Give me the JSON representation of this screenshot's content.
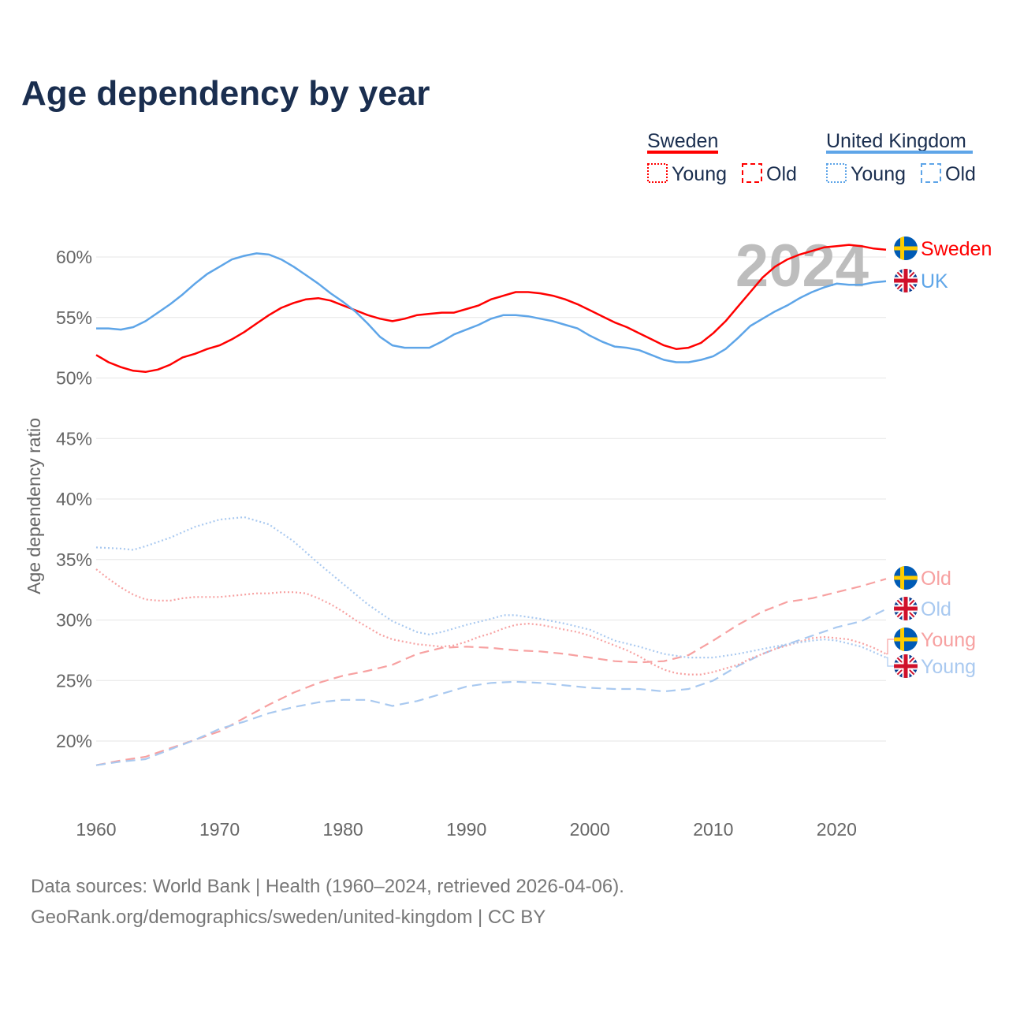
{
  "colors": {
    "title": "#1a2e4f",
    "sweden": "#ff0000",
    "uk": "#5ea5e8",
    "sweden_light": "#f7a1a1",
    "uk_light": "#a9c9f0",
    "grid": "#e6e6e6",
    "axis_text": "#666666",
    "watermark": "#bdbdbd"
  },
  "legend": {
    "sweden": {
      "label": "Sweden",
      "young": "Young",
      "old": "Old"
    },
    "uk": {
      "label": "United Kingdom",
      "young": "Young",
      "old": "Old"
    }
  },
  "footer": {
    "line1": "Data sources: World Bank | Health (1960–2024, retrieved 2026-04-06).",
    "line2": "GeoRank.org/demographics/sweden/united-kingdom | CC BY"
  },
  "chart_data": {
    "type": "line",
    "title": "Age dependency by year",
    "watermark": "2024",
    "xlabel": "",
    "ylabel": "Age dependency ratio",
    "xlim": [
      1960,
      2024
    ],
    "ylim": [
      15,
      62
    ],
    "grid": true,
    "x_ticks": [
      1960,
      1970,
      1980,
      1990,
      2000,
      2010,
      2020
    ],
    "y_ticks": [
      20,
      25,
      30,
      35,
      40,
      45,
      50,
      55,
      60
    ],
    "y_tick_labels": [
      "20%",
      "25%",
      "30%",
      "35%",
      "40%",
      "45%",
      "50%",
      "55%",
      "60%"
    ],
    "series": [
      {
        "id": "sweden-total",
        "name": "Sweden",
        "end_label": "Sweden",
        "flag": "sweden",
        "style": "solid",
        "color_key": "sweden",
        "x": [
          1960,
          1961,
          1962,
          1963,
          1964,
          1965,
          1966,
          1967,
          1968,
          1969,
          1970,
          1971,
          1972,
          1973,
          1974,
          1975,
          1976,
          1977,
          1978,
          1979,
          1980,
          1981,
          1982,
          1983,
          1984,
          1985,
          1986,
          1987,
          1988,
          1989,
          1990,
          1991,
          1992,
          1993,
          1994,
          1995,
          1996,
          1997,
          1998,
          1999,
          2000,
          2001,
          2002,
          2003,
          2004,
          2005,
          2006,
          2007,
          2008,
          2009,
          2010,
          2011,
          2012,
          2013,
          2014,
          2015,
          2016,
          2017,
          2018,
          2019,
          2020,
          2021,
          2022,
          2023,
          2024
        ],
        "values": [
          51.9,
          51.3,
          50.9,
          50.6,
          50.5,
          50.7,
          51.1,
          51.7,
          52.0,
          52.4,
          52.7,
          53.2,
          53.8,
          54.5,
          55.2,
          55.8,
          56.2,
          56.5,
          56.6,
          56.4,
          56.0,
          55.6,
          55.2,
          54.9,
          54.7,
          54.9,
          55.2,
          55.3,
          55.4,
          55.4,
          55.7,
          56.0,
          56.5,
          56.8,
          57.1,
          57.1,
          57.0,
          56.8,
          56.5,
          56.1,
          55.6,
          55.1,
          54.6,
          54.2,
          53.7,
          53.2,
          52.7,
          52.4,
          52.5,
          52.9,
          53.7,
          54.7,
          55.9,
          57.1,
          58.3,
          59.2,
          59.8,
          60.2,
          60.5,
          60.8,
          60.9,
          61.0,
          60.9,
          60.7,
          60.6
        ]
      },
      {
        "id": "uk-total",
        "name": "United Kingdom",
        "end_label": "UK",
        "flag": "uk",
        "style": "solid",
        "color_key": "uk",
        "x": [
          1960,
          1961,
          1962,
          1963,
          1964,
          1965,
          1966,
          1967,
          1968,
          1969,
          1970,
          1971,
          1972,
          1973,
          1974,
          1975,
          1976,
          1977,
          1978,
          1979,
          1980,
          1981,
          1982,
          1983,
          1984,
          1985,
          1986,
          1987,
          1988,
          1989,
          1990,
          1991,
          1992,
          1993,
          1994,
          1995,
          1996,
          1997,
          1998,
          1999,
          2000,
          2001,
          2002,
          2003,
          2004,
          2005,
          2006,
          2007,
          2008,
          2009,
          2010,
          2011,
          2012,
          2013,
          2014,
          2015,
          2016,
          2017,
          2018,
          2019,
          2020,
          2021,
          2022,
          2023,
          2024
        ],
        "values": [
          54.1,
          54.1,
          54.0,
          54.2,
          54.7,
          55.4,
          56.1,
          56.9,
          57.8,
          58.6,
          59.2,
          59.8,
          60.1,
          60.3,
          60.2,
          59.8,
          59.2,
          58.5,
          57.8,
          57.0,
          56.3,
          55.5,
          54.5,
          53.4,
          52.7,
          52.5,
          52.5,
          52.5,
          53.0,
          53.6,
          54.0,
          54.4,
          54.9,
          55.2,
          55.2,
          55.1,
          54.9,
          54.7,
          54.4,
          54.1,
          53.5,
          53.0,
          52.6,
          52.5,
          52.3,
          51.9,
          51.5,
          51.3,
          51.3,
          51.5,
          51.8,
          52.4,
          53.3,
          54.3,
          54.9,
          55.5,
          56.0,
          56.6,
          57.1,
          57.5,
          57.8,
          57.7,
          57.7,
          57.9,
          58.0
        ]
      },
      {
        "id": "sweden-old",
        "name": "Sweden Old",
        "end_label": "Old",
        "flag": "sweden",
        "style": "dashed",
        "color_key": "sweden_light",
        "x": [
          1960,
          1962,
          1964,
          1966,
          1968,
          1970,
          1972,
          1974,
          1976,
          1978,
          1980,
          1982,
          1984,
          1986,
          1988,
          1990,
          1992,
          1994,
          1996,
          1998,
          2000,
          2002,
          2004,
          2006,
          2008,
          2010,
          2012,
          2014,
          2016,
          2018,
          2020,
          2022,
          2024
        ],
        "values": [
          18.0,
          18.4,
          18.7,
          19.4,
          20.1,
          20.8,
          21.9,
          23.0,
          24.0,
          24.8,
          25.4,
          25.8,
          26.3,
          27.2,
          27.7,
          27.8,
          27.7,
          27.5,
          27.4,
          27.2,
          26.9,
          26.6,
          26.5,
          26.6,
          27.1,
          28.3,
          29.6,
          30.7,
          31.5,
          31.8,
          32.3,
          32.8,
          33.4
        ]
      },
      {
        "id": "uk-old",
        "name": "United Kingdom Old",
        "end_label": "Old",
        "flag": "uk",
        "style": "dashed",
        "color_key": "uk_light",
        "x": [
          1960,
          1962,
          1964,
          1966,
          1968,
          1970,
          1972,
          1974,
          1976,
          1978,
          1980,
          1982,
          1984,
          1986,
          1988,
          1990,
          1992,
          1994,
          1996,
          1998,
          2000,
          2002,
          2004,
          2006,
          2008,
          2010,
          2012,
          2014,
          2016,
          2018,
          2020,
          2022,
          2024
        ],
        "values": [
          18.0,
          18.3,
          18.5,
          19.3,
          20.1,
          21.0,
          21.6,
          22.3,
          22.8,
          23.2,
          23.4,
          23.4,
          22.9,
          23.3,
          23.9,
          24.5,
          24.8,
          24.9,
          24.8,
          24.6,
          24.4,
          24.3,
          24.3,
          24.1,
          24.3,
          25.0,
          26.2,
          27.2,
          28.0,
          28.7,
          29.4,
          29.9,
          30.9
        ]
      },
      {
        "id": "sweden-young",
        "name": "Sweden Young",
        "end_label": "Young",
        "flag": "sweden",
        "style": "dotted",
        "color_key": "sweden_light",
        "x": [
          1960,
          1961,
          1962,
          1963,
          1964,
          1965,
          1966,
          1967,
          1968,
          1969,
          1970,
          1971,
          1972,
          1973,
          1974,
          1975,
          1976,
          1977,
          1978,
          1979,
          1980,
          1981,
          1982,
          1983,
          1984,
          1985,
          1986,
          1987,
          1988,
          1989,
          1990,
          1991,
          1992,
          1993,
          1994,
          1995,
          1996,
          1997,
          1998,
          1999,
          2000,
          2001,
          2002,
          2003,
          2004,
          2005,
          2006,
          2007,
          2008,
          2009,
          2010,
          2011,
          2012,
          2013,
          2014,
          2015,
          2016,
          2017,
          2018,
          2019,
          2020,
          2021,
          2022,
          2023,
          2024
        ],
        "values": [
          34.2,
          33.4,
          32.7,
          32.1,
          31.7,
          31.6,
          31.6,
          31.8,
          31.9,
          31.9,
          31.9,
          32.0,
          32.1,
          32.2,
          32.2,
          32.3,
          32.3,
          32.2,
          31.8,
          31.3,
          30.7,
          30.0,
          29.4,
          28.8,
          28.4,
          28.2,
          28.0,
          27.9,
          27.8,
          27.9,
          28.2,
          28.6,
          28.9,
          29.3,
          29.6,
          29.7,
          29.6,
          29.4,
          29.2,
          29.0,
          28.7,
          28.3,
          27.9,
          27.5,
          27.0,
          26.4,
          25.9,
          25.6,
          25.5,
          25.5,
          25.7,
          26.0,
          26.3,
          26.8,
          27.2,
          27.6,
          27.9,
          28.2,
          28.5,
          28.6,
          28.5,
          28.4,
          28.1,
          27.7,
          27.2
        ]
      },
      {
        "id": "uk-young",
        "name": "United Kingdom Young",
        "end_label": "Young",
        "flag": "uk",
        "style": "dotted",
        "color_key": "uk_light",
        "x": [
          1960,
          1962,
          1963,
          1964,
          1966,
          1968,
          1970,
          1972,
          1974,
          1976,
          1978,
          1980,
          1982,
          1984,
          1986,
          1987,
          1988,
          1990,
          1992,
          1993,
          1994,
          1996,
          1998,
          2000,
          2002,
          2004,
          2006,
          2008,
          2010,
          2012,
          2014,
          2016,
          2018,
          2019,
          2020,
          2022,
          2024
        ],
        "values": [
          36.0,
          35.9,
          35.8,
          36.1,
          36.8,
          37.7,
          38.3,
          38.5,
          37.9,
          36.5,
          34.7,
          33.0,
          31.3,
          29.9,
          29.0,
          28.8,
          29.0,
          29.6,
          30.1,
          30.4,
          30.4,
          30.1,
          29.7,
          29.2,
          28.3,
          27.8,
          27.2,
          26.9,
          26.9,
          27.2,
          27.6,
          28.0,
          28.3,
          28.4,
          28.3,
          27.8,
          26.9
        ]
      }
    ]
  }
}
